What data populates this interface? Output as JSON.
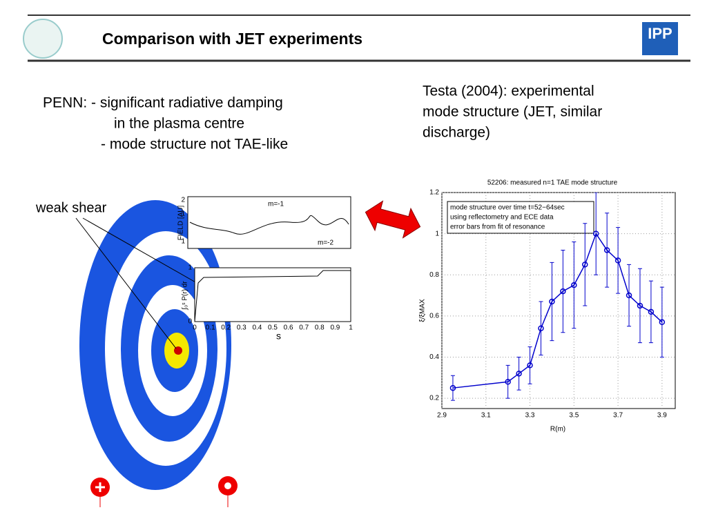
{
  "header": {
    "title": "Comparison with JET experiments",
    "logo_text": "IPP"
  },
  "left_text": {
    "lines": [
      "PENN: - significant radiative damping",
      "in the plasma centre",
      "- mode structure not TAE-like"
    ]
  },
  "right_text": {
    "lines": [
      "Testa (2004): experimental",
      "mode structure (JET, similar",
      "discharge)"
    ]
  },
  "figure": {
    "annotation": "weak shear",
    "top_panel": {
      "ylabel": "FIELD [AU]",
      "yticks": [
        "2",
        "1",
        "1"
      ],
      "labels": [
        "m=-1",
        "m=-2"
      ]
    },
    "bottom_panel": {
      "ylabel": "∫₀ˢ P(r) dr",
      "yticks": [
        "1",
        "0"
      ],
      "xticks": [
        "0",
        "0.1",
        "0.2",
        "0.3",
        "0.4",
        "0.5",
        "0.6",
        "0.7",
        "0.8",
        "0.9",
        "1"
      ],
      "xlabel": "s"
    }
  },
  "chart_data": {
    "type": "line",
    "title": "52206: measured n=1 TAE mode structure",
    "xlabel": "R(m)",
    "ylabel": "ξ/ξMAX",
    "annotation": [
      "mode structure over time t=52−64sec",
      "using reflectometry and ECE data",
      "error bars from fit of resonance"
    ],
    "series": [
      {
        "color": "#0000cc",
        "x": [
          2.95,
          3.2,
          3.25,
          3.3,
          3.35,
          3.4,
          3.45,
          3.5,
          3.55,
          3.6,
          3.65,
          3.7,
          3.75,
          3.8,
          3.85,
          3.9
        ],
        "values": [
          0.25,
          0.28,
          0.32,
          0.36,
          0.54,
          0.67,
          0.72,
          0.75,
          0.85,
          1.0,
          0.92,
          0.87,
          0.7,
          0.65,
          0.62,
          0.57
        ],
        "errors": [
          0.06,
          0.08,
          0.08,
          0.09,
          0.13,
          0.19,
          0.2,
          0.21,
          0.2,
          0.2,
          0.18,
          0.16,
          0.15,
          0.18,
          0.15,
          0.17
        ]
      }
    ],
    "xlim": [
      2.9,
      3.96
    ],
    "ylim": [
      0.15,
      1.2
    ],
    "xticks": [
      2.9,
      3.1,
      3.3,
      3.5,
      3.7,
      3.9
    ],
    "yticks": [
      0.2,
      0.4,
      0.6,
      0.8,
      1,
      1.2
    ],
    "grid": true
  }
}
